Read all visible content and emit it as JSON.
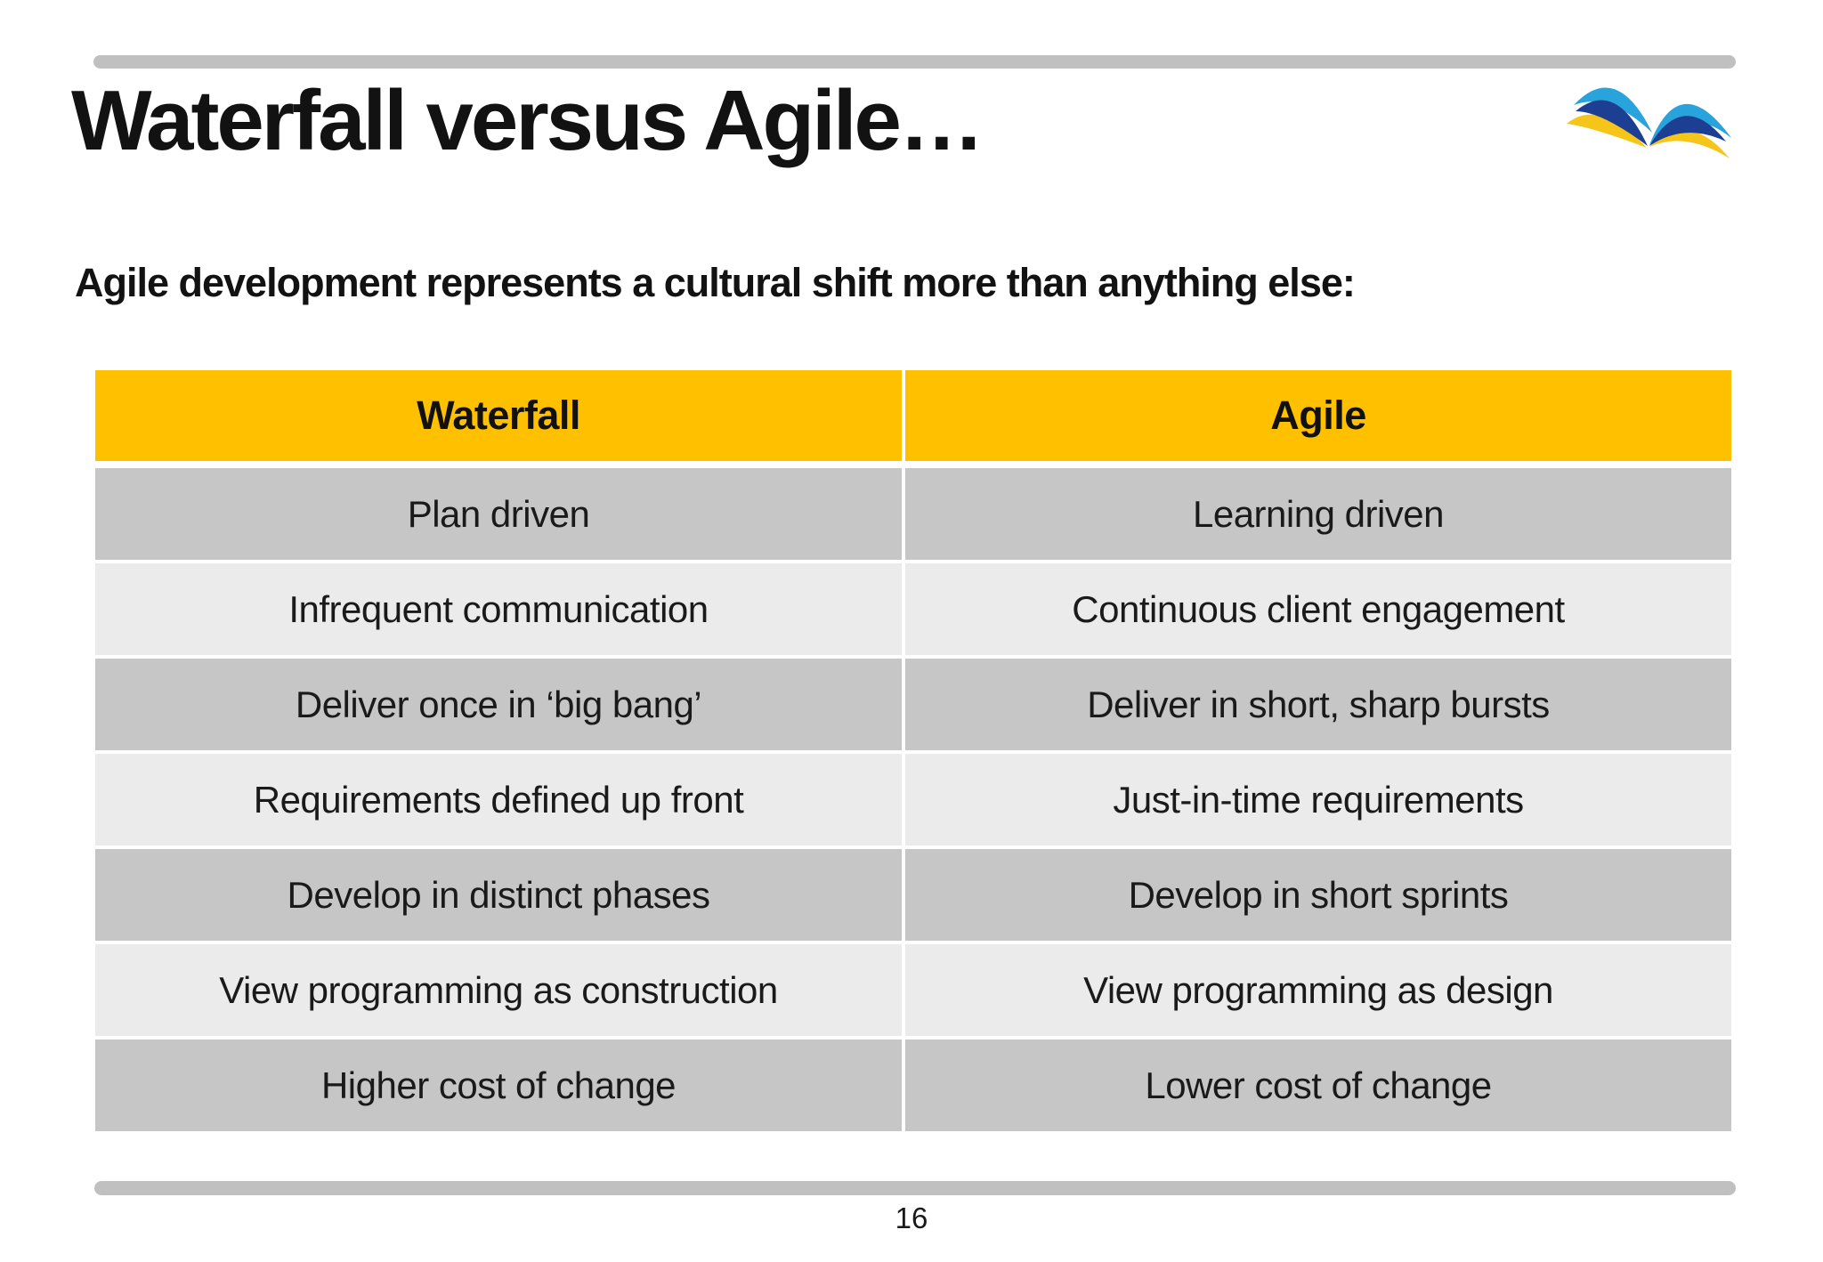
{
  "slide": {
    "title": "Waterfall versus Agile…",
    "subtitle": "Agile development represents a cultural shift more than anything else:",
    "page_number": "16"
  },
  "table": {
    "headers": [
      "Waterfall",
      "Agile"
    ],
    "rows": [
      [
        "Plan driven",
        "Learning driven"
      ],
      [
        "Infrequent communication",
        "Continuous client engagement"
      ],
      [
        "Deliver once in ‘big bang’",
        "Deliver in short, sharp bursts"
      ],
      [
        "Requirements defined up front",
        "Just-in-time requirements"
      ],
      [
        "Develop in distinct phases",
        "Develop in short sprints"
      ],
      [
        "View programming as construction",
        "View programming as design"
      ],
      [
        "Higher cost of change",
        "Lower cost of change"
      ]
    ]
  },
  "colors": {
    "header_bg": "#FFC000",
    "row_dark": "#C6C6C6",
    "row_light": "#EBEBEB",
    "bar": "#C0C0C0",
    "logo_cyan": "#29A3DC",
    "logo_navy": "#1C3E93",
    "logo_yellow": "#F5C51A"
  }
}
